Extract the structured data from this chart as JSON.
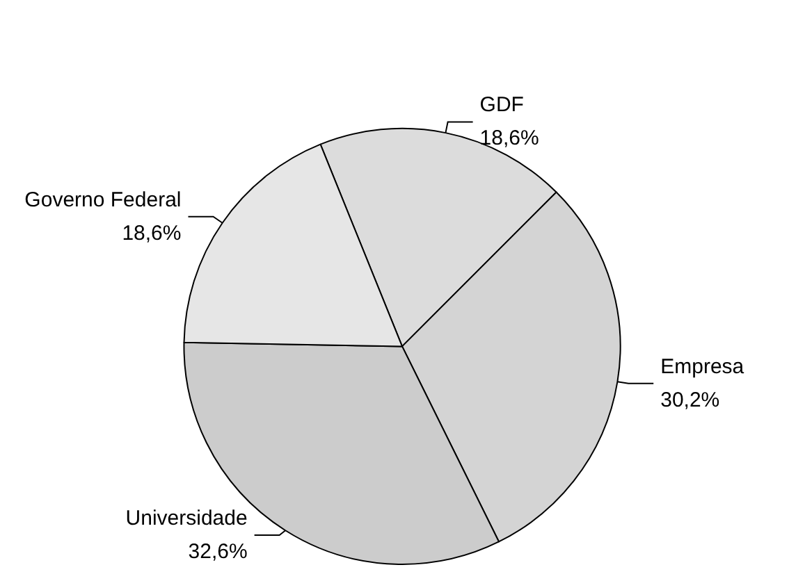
{
  "chart_data": {
    "type": "pie",
    "categories": [
      "GDF",
      "Empresa",
      "Universidade",
      "Governo Federal"
    ],
    "values": [
      18.6,
      30.2,
      32.6,
      18.6
    ],
    "value_labels": [
      "18,6%",
      "30,2%",
      "32,6%",
      "18,6%"
    ],
    "colors": [
      "#dcdcdc",
      "#d4d4d4",
      "#cccccc",
      "#e6e6e6"
    ],
    "legend": false
  }
}
